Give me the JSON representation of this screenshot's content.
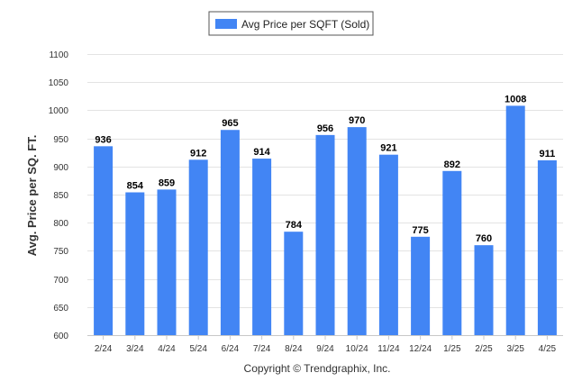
{
  "chart_data": {
    "type": "bar",
    "categories": [
      "2/24",
      "3/24",
      "4/24",
      "5/24",
      "6/24",
      "7/24",
      "8/24",
      "9/24",
      "10/24",
      "11/24",
      "12/24",
      "1/25",
      "2/25",
      "3/25",
      "4/25"
    ],
    "series": [
      {
        "name": "Avg Price per SQFT (Sold)",
        "values": [
          936,
          854,
          859,
          912,
          965,
          914,
          784,
          956,
          970,
          921,
          775,
          892,
          760,
          1008,
          911
        ]
      }
    ],
    "ylabel": "Avg. Price per SQ. FT.",
    "xlabel": "",
    "ylim": [
      600,
      1100
    ],
    "yticks": [
      600,
      650,
      700,
      750,
      800,
      850,
      900,
      950,
      1000,
      1050,
      1100
    ],
    "grid": true,
    "legend": "top-center",
    "data_labels": true,
    "bar_color": "#4285f4"
  },
  "footer": {
    "copyright": "Copyright © Trendgraphix, Inc."
  }
}
